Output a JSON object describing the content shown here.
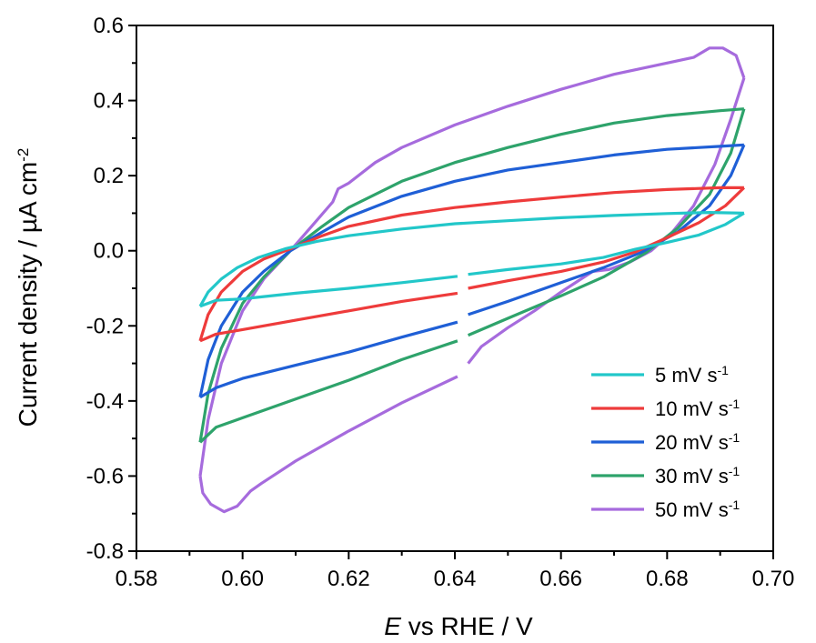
{
  "chart_data": {
    "type": "line",
    "xlabel": {
      "italic": "E",
      "rest": " vs RHE / V"
    },
    "ylabel": {
      "main": "Current density / µA cm",
      "sup": "-2"
    },
    "xlim": [
      0.58,
      0.7
    ],
    "ylim": [
      -0.8,
      0.6
    ],
    "x_ticks": [
      0.58,
      0.6,
      0.62,
      0.64,
      0.66,
      0.68,
      0.7
    ],
    "x_tick_labels": [
      "0.58",
      "0.60",
      "0.62",
      "0.64",
      "0.66",
      "0.68",
      "0.70"
    ],
    "y_ticks": [
      -0.8,
      -0.6,
      -0.4,
      -0.2,
      0.0,
      0.2,
      0.4,
      0.6
    ],
    "y_tick_labels": [
      "-0.8",
      "-0.6",
      "-0.4",
      "-0.2",
      "0.0",
      "0.2",
      "0.4",
      "0.6"
    ],
    "grid": false,
    "legend_position": "bottom-right",
    "series": [
      {
        "name": "5 mV s",
        "name_sup": "-1",
        "color": "#22C7C9",
        "anodic": [
          [
            0.592,
            -0.148
          ],
          [
            0.5935,
            -0.11
          ],
          [
            0.596,
            -0.075
          ],
          [
            0.599,
            -0.045
          ],
          [
            0.603,
            -0.018
          ],
          [
            0.608,
            0.005
          ],
          [
            0.614,
            0.025
          ],
          [
            0.62,
            0.04
          ],
          [
            0.63,
            0.058
          ],
          [
            0.64,
            0.072
          ],
          [
            0.65,
            0.08
          ],
          [
            0.66,
            0.088
          ],
          [
            0.67,
            0.094
          ],
          [
            0.68,
            0.099
          ],
          [
            0.688,
            0.102
          ],
          [
            0.6945,
            0.1
          ]
        ],
        "cathodic_upper": [
          [
            0.6945,
            0.1
          ],
          [
            0.691,
            0.07
          ],
          [
            0.686,
            0.042
          ],
          [
            0.68,
            0.022
          ],
          [
            0.674,
            0.004
          ],
          [
            0.668,
            -0.018
          ],
          [
            0.66,
            -0.035
          ],
          [
            0.65,
            -0.05
          ],
          [
            0.6425,
            -0.063
          ]
        ],
        "cathodic_lower": [
          [
            0.6405,
            -0.068
          ],
          [
            0.63,
            -0.085
          ],
          [
            0.62,
            -0.1
          ],
          [
            0.61,
            -0.113
          ],
          [
            0.6,
            -0.128
          ],
          [
            0.595,
            -0.132
          ],
          [
            0.592,
            -0.148
          ]
        ]
      },
      {
        "name": "10 mV s",
        "name_sup": "-1",
        "color": "#EE3B3B",
        "anodic": [
          [
            0.592,
            -0.24
          ],
          [
            0.5935,
            -0.17
          ],
          [
            0.596,
            -0.11
          ],
          [
            0.6,
            -0.055
          ],
          [
            0.604,
            -0.022
          ],
          [
            0.609,
            0.005
          ],
          [
            0.615,
            0.04
          ],
          [
            0.62,
            0.065
          ],
          [
            0.63,
            0.095
          ],
          [
            0.64,
            0.115
          ],
          [
            0.65,
            0.13
          ],
          [
            0.66,
            0.143
          ],
          [
            0.67,
            0.155
          ],
          [
            0.68,
            0.163
          ],
          [
            0.69,
            0.168
          ],
          [
            0.6945,
            0.168
          ]
        ],
        "cathodic_upper": [
          [
            0.6945,
            0.168
          ],
          [
            0.691,
            0.12
          ],
          [
            0.686,
            0.075
          ],
          [
            0.68,
            0.035
          ],
          [
            0.674,
            -0.003
          ],
          [
            0.668,
            -0.03
          ],
          [
            0.66,
            -0.055
          ],
          [
            0.65,
            -0.08
          ],
          [
            0.6425,
            -0.1
          ]
        ],
        "cathodic_lower": [
          [
            0.6405,
            -0.113
          ],
          [
            0.63,
            -0.135
          ],
          [
            0.62,
            -0.16
          ],
          [
            0.61,
            -0.185
          ],
          [
            0.6,
            -0.21
          ],
          [
            0.595,
            -0.222
          ],
          [
            0.592,
            -0.24
          ]
        ]
      },
      {
        "name": "20 mV s",
        "name_sup": "-1",
        "color": "#1F5FD6",
        "anodic": [
          [
            0.592,
            -0.39
          ],
          [
            0.5935,
            -0.29
          ],
          [
            0.596,
            -0.2
          ],
          [
            0.6,
            -0.11
          ],
          [
            0.604,
            -0.055
          ],
          [
            0.609,
            0.0
          ],
          [
            0.615,
            0.05
          ],
          [
            0.62,
            0.09
          ],
          [
            0.63,
            0.145
          ],
          [
            0.64,
            0.185
          ],
          [
            0.65,
            0.215
          ],
          [
            0.66,
            0.235
          ],
          [
            0.67,
            0.255
          ],
          [
            0.68,
            0.27
          ],
          [
            0.69,
            0.278
          ],
          [
            0.6945,
            0.282
          ]
        ],
        "cathodic_upper": [
          [
            0.6945,
            0.282
          ],
          [
            0.692,
            0.2
          ],
          [
            0.688,
            0.12
          ],
          [
            0.682,
            0.05
          ],
          [
            0.675,
            -0.005
          ],
          [
            0.668,
            -0.045
          ],
          [
            0.66,
            -0.085
          ],
          [
            0.65,
            -0.135
          ],
          [
            0.6425,
            -0.17
          ]
        ],
        "cathodic_lower": [
          [
            0.6405,
            -0.19
          ],
          [
            0.63,
            -0.23
          ],
          [
            0.62,
            -0.27
          ],
          [
            0.61,
            -0.305
          ],
          [
            0.6,
            -0.34
          ],
          [
            0.595,
            -0.365
          ],
          [
            0.592,
            -0.39
          ]
        ]
      },
      {
        "name": "30 mV s",
        "name_sup": "-1",
        "color": "#2EA36B",
        "anodic": [
          [
            0.592,
            -0.51
          ],
          [
            0.5935,
            -0.38
          ],
          [
            0.596,
            -0.26
          ],
          [
            0.6,
            -0.14
          ],
          [
            0.604,
            -0.07
          ],
          [
            0.609,
            0.0
          ],
          [
            0.615,
            0.065
          ],
          [
            0.62,
            0.115
          ],
          [
            0.63,
            0.185
          ],
          [
            0.64,
            0.235
          ],
          [
            0.65,
            0.275
          ],
          [
            0.66,
            0.31
          ],
          [
            0.67,
            0.34
          ],
          [
            0.68,
            0.36
          ],
          [
            0.69,
            0.373
          ],
          [
            0.6945,
            0.378
          ]
        ],
        "cathodic_upper": [
          [
            0.6945,
            0.378
          ],
          [
            0.692,
            0.26
          ],
          [
            0.688,
            0.15
          ],
          [
            0.682,
            0.06
          ],
          [
            0.676,
            -0.005
          ],
          [
            0.668,
            -0.07
          ],
          [
            0.66,
            -0.12
          ],
          [
            0.65,
            -0.18
          ],
          [
            0.6425,
            -0.225
          ]
        ],
        "cathodic_lower": [
          [
            0.6405,
            -0.24
          ],
          [
            0.63,
            -0.29
          ],
          [
            0.62,
            -0.345
          ],
          [
            0.61,
            -0.395
          ],
          [
            0.6,
            -0.445
          ],
          [
            0.595,
            -0.47
          ],
          [
            0.592,
            -0.51
          ]
        ]
      },
      {
        "name": "50 mV s",
        "name_sup": "-1",
        "color": "#A66BDD",
        "anodic": [
          [
            0.592,
            -0.6
          ],
          [
            0.5935,
            -0.45
          ],
          [
            0.596,
            -0.3
          ],
          [
            0.6,
            -0.16
          ],
          [
            0.604,
            -0.075
          ],
          [
            0.609,
            0.0
          ],
          [
            0.613,
            0.065
          ],
          [
            0.617,
            0.13
          ],
          [
            0.618,
            0.165
          ],
          [
            0.62,
            0.18
          ],
          [
            0.625,
            0.235
          ],
          [
            0.63,
            0.275
          ],
          [
            0.64,
            0.335
          ],
          [
            0.65,
            0.385
          ],
          [
            0.66,
            0.43
          ],
          [
            0.67,
            0.47
          ],
          [
            0.68,
            0.5
          ],
          [
            0.685,
            0.515
          ],
          [
            0.688,
            0.54
          ],
          [
            0.6905,
            0.54
          ],
          [
            0.693,
            0.52
          ],
          [
            0.6945,
            0.46
          ]
        ],
        "cathodic_upper": [
          [
            0.6945,
            0.46
          ],
          [
            0.692,
            0.35
          ],
          [
            0.689,
            0.23
          ],
          [
            0.685,
            0.12
          ],
          [
            0.681,
            0.05
          ],
          [
            0.677,
            0.0
          ],
          [
            0.673,
            -0.03
          ],
          [
            0.669,
            -0.05
          ],
          [
            0.666,
            -0.055
          ],
          [
            0.66,
            -0.11
          ],
          [
            0.655,
            -0.16
          ],
          [
            0.65,
            -0.205
          ],
          [
            0.645,
            -0.255
          ],
          [
            0.6425,
            -0.3
          ]
        ],
        "cathodic_lower": [
          [
            0.6405,
            -0.335
          ],
          [
            0.63,
            -0.405
          ],
          [
            0.62,
            -0.48
          ],
          [
            0.61,
            -0.56
          ],
          [
            0.6035,
            -0.62
          ],
          [
            0.6015,
            -0.64
          ],
          [
            0.599,
            -0.68
          ],
          [
            0.5965,
            -0.695
          ],
          [
            0.594,
            -0.675
          ],
          [
            0.5925,
            -0.645
          ],
          [
            0.592,
            -0.6
          ]
        ]
      }
    ]
  }
}
